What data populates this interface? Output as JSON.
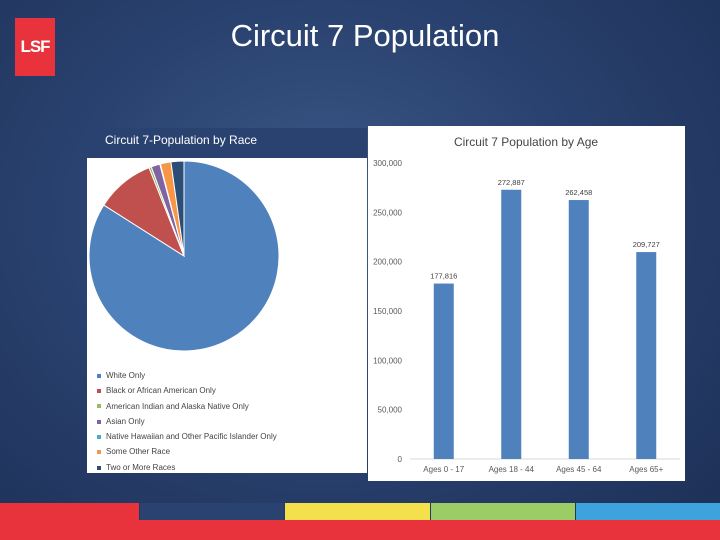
{
  "slide": {
    "title": "Circuit 7 Population",
    "logo_text": "LSF"
  },
  "strip_colors": [
    "#e8323c",
    "#2a4270",
    "#f4e04d",
    "#9ccc65",
    "#3ea2dc"
  ],
  "chart_data": [
    {
      "type": "pie",
      "title": "Circuit 7-Population by Race",
      "labels": [
        "White Only",
        "Black or African American Only",
        "American Indian and Alaska Native Only",
        "Asian Only",
        "Native Hawaiian and Other Pacific Islander Only",
        "Some Other Race",
        "Two or More Races"
      ],
      "values": [
        84.0,
        10.0,
        0.4,
        1.5,
        0.1,
        1.8,
        2.2
      ],
      "colors": [
        "#4f81bd",
        "#c0504d",
        "#9bbb59",
        "#8064a2",
        "#4bacc6",
        "#f79646",
        "#2c4d75"
      ],
      "legend_position": "bottom"
    },
    {
      "type": "bar",
      "title": "Circuit 7 Population by Age",
      "categories": [
        "Ages 0 - 17",
        "Ages 18 - 44",
        "Ages 45 - 64",
        "Ages 65+"
      ],
      "values": [
        177816,
        272887,
        262458,
        209727
      ],
      "data_labels": [
        "177,816",
        "272,887",
        "262,458",
        "209,727"
      ],
      "y_ticks": [
        "0",
        "50,000",
        "100,000",
        "150,000",
        "200,000",
        "250,000",
        "300,000"
      ],
      "ylim": [
        0,
        300000
      ],
      "color": "#4f81bd",
      "grid": false
    }
  ]
}
